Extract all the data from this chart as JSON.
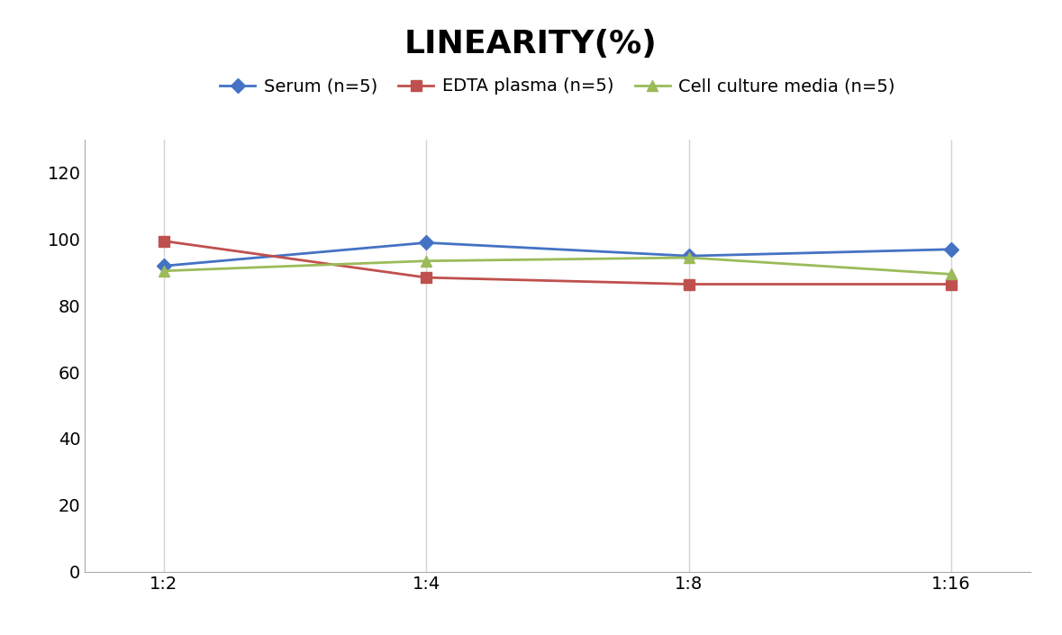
{
  "title": "LINEARITY(%)",
  "title_fontsize": 26,
  "title_fontweight": "bold",
  "x_labels": [
    "1:2",
    "1:4",
    "1:8",
    "1:16"
  ],
  "x_positions": [
    0,
    1,
    2,
    3
  ],
  "series": [
    {
      "label": "Serum (n=5)",
      "values": [
        92,
        99,
        95,
        97
      ],
      "color": "#4472C4",
      "marker": "D",
      "markersize": 8,
      "linewidth": 2
    },
    {
      "label": "EDTA plasma (n=5)",
      "values": [
        99.5,
        88.5,
        86.5,
        86.5
      ],
      "color": "#C0504D",
      "marker": "s",
      "markersize": 8,
      "linewidth": 2
    },
    {
      "label": "Cell culture media (n=5)",
      "values": [
        90.5,
        93.5,
        94.5,
        89.5
      ],
      "color": "#9BBB59",
      "marker": "^",
      "markersize": 8,
      "linewidth": 2
    }
  ],
  "ylim": [
    0,
    130
  ],
  "yticks": [
    0,
    20,
    40,
    60,
    80,
    100,
    120
  ],
  "background_color": "#ffffff",
  "grid_color": "#d3d3d3",
  "legend_fontsize": 14,
  "tick_fontsize": 14
}
